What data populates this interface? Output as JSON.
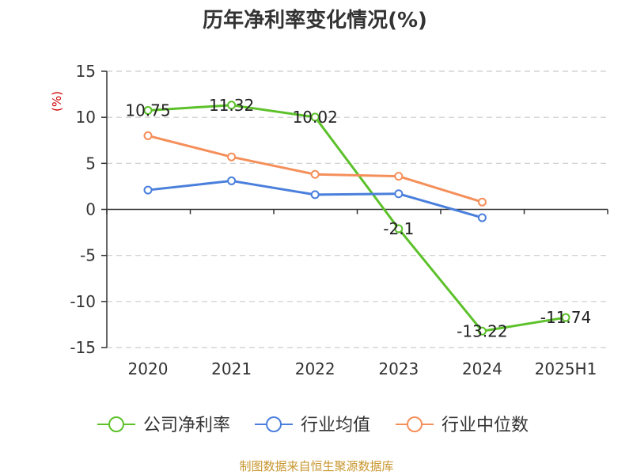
{
  "chart_data": {
    "type": "line",
    "title": "历年净利率变化情况(%)",
    "ylabel": "(%)",
    "categories": [
      "2020",
      "2021",
      "2022",
      "2023",
      "2024",
      "2025H1"
    ],
    "ylim": [
      -15,
      15
    ],
    "yticks": [
      15,
      10,
      5,
      0,
      -5,
      -10,
      -15
    ],
    "grid": true,
    "legend_position": "bottom",
    "series": [
      {
        "name": "公司净利率",
        "color": "#5cc12a",
        "values": [
          10.75,
          11.32,
          10.02,
          -2.1,
          -13.22,
          -11.74
        ],
        "labels": [
          "10.75",
          "11.32",
          "10.02",
          "-2.1",
          "-13.22",
          "-11.74"
        ]
      },
      {
        "name": "行业均值",
        "color": "#4a7fdc",
        "values": [
          2.1,
          3.1,
          1.6,
          1.7,
          -0.9,
          null
        ]
      },
      {
        "name": "行业中位数",
        "color": "#f58f5a",
        "values": [
          8.0,
          5.7,
          3.8,
          3.6,
          0.8,
          null
        ]
      }
    ],
    "source": "制图数据来自恒生聚源数据库",
    "colors": {
      "ylabel": "#cc0000",
      "source": "#c8962e",
      "grid": "#cccccc",
      "axis": "#333333"
    }
  }
}
